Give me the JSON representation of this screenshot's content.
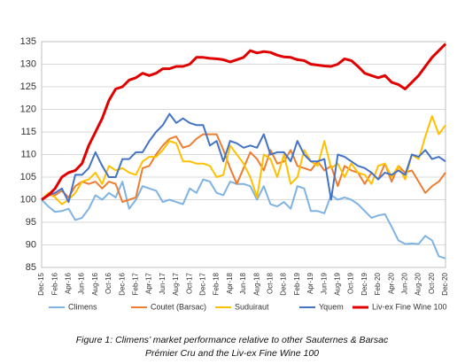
{
  "chart_data": {
    "type": "line",
    "caption": [
      "Figure 1: Climens’ market performance relative to other Sauternes & Barsac",
      "Prémier Cru and the Liv-ex Fine Wine 100"
    ],
    "categories": [
      "Dec-15",
      null,
      "Feb-16",
      null,
      "Apr-16",
      null,
      "Jun-16",
      null,
      "Aug-16",
      null,
      "Oct-16",
      null,
      "Dec-16",
      null,
      "Feb-17",
      null,
      "Apr-17",
      null,
      "Jun-17",
      null,
      "Aug-17",
      null,
      "Oct-17",
      null,
      "Dec-17",
      null,
      "Feb-18",
      null,
      "Apr-18",
      null,
      "Jun-18",
      null,
      "Aug-18",
      null,
      "Oct-18",
      null,
      "Dec-18",
      null,
      "Feb-19",
      null,
      "Apr-19",
      null,
      "Jun-19",
      null,
      "Aug-19",
      null,
      "Oct-19",
      null,
      "Dec-19",
      null,
      "Feb-20",
      null,
      "Apr-20",
      null,
      "Jun-20",
      null,
      "Aug-20",
      null,
      "Oct-20",
      null,
      "Dec-20"
    ],
    "ylim": [
      85,
      135
    ],
    "yticks": [
      85,
      90,
      95,
      100,
      105,
      110,
      115,
      120,
      125,
      130,
      135
    ],
    "grid": true,
    "legend": "bottom",
    "series": [
      {
        "name": "Climens",
        "color": "#7fb3e3",
        "width": 2,
        "values": [
          100,
          98.5,
          97.3,
          97.5,
          98,
          95.5,
          96,
          98,
          101,
          100,
          101.5,
          100.5,
          104,
          98,
          100,
          103,
          102.5,
          102,
          99.5,
          100,
          99.5,
          99,
          102.5,
          101.5,
          104.5,
          104,
          101.5,
          101,
          104,
          103.5,
          103.5,
          103,
          100,
          103,
          99,
          98.5,
          99.5,
          98,
          103,
          102.5,
          97.5,
          97.5,
          97,
          101,
          100,
          100.5,
          100,
          99,
          97.5,
          96,
          96.5,
          96.8,
          94,
          91,
          90.2,
          90.3,
          90.2,
          92,
          91,
          87.5,
          87
        ]
      },
      {
        "name": "Coutet (Barsac)",
        "color": "#ed7d31",
        "width": 2,
        "values": [
          100,
          101,
          101,
          102,
          100.5,
          103,
          104,
          103.5,
          104,
          102.5,
          104,
          103.5,
          99.5,
          100,
          100.5,
          107,
          107.5,
          110,
          112,
          113.5,
          114,
          111.5,
          112,
          113.5,
          114.5,
          114.5,
          114.5,
          111,
          107,
          103.5,
          107,
          110.5,
          109,
          106.5,
          111,
          108,
          108.5,
          111,
          107.5,
          107,
          106.5,
          108.5,
          106.5,
          107.5,
          103,
          107.5,
          106.5,
          106,
          103.5,
          106,
          104.5,
          108,
          104,
          107.5,
          106,
          106.5,
          104,
          101.5,
          103,
          104,
          106
        ]
      },
      {
        "name": "Suduiraut",
        "color": "#ffc000",
        "width": 2,
        "values": [
          100,
          101.5,
          100.5,
          99,
          100,
          101.5,
          104,
          104.5,
          106,
          103.5,
          107.5,
          106.5,
          107,
          106,
          105.5,
          108.5,
          109.5,
          109.5,
          111,
          113,
          112.5,
          108.5,
          108.5,
          108,
          108,
          107.5,
          105,
          105.5,
          112,
          110,
          108,
          105,
          100.5,
          110,
          109,
          105,
          110,
          103.5,
          105,
          111,
          108.5,
          107.5,
          113,
          107,
          108,
          105,
          108,
          106,
          105.5,
          103.5,
          107.5,
          108,
          105,
          107.5,
          104.5,
          110,
          109,
          114,
          118.5,
          114.5,
          116.5
        ]
      },
      {
        "name": "Yquem",
        "color": "#4472c4",
        "width": 2,
        "values": [
          100,
          101,
          101.5,
          102.5,
          99.5,
          105.5,
          105.5,
          107,
          110.5,
          107.5,
          105,
          105,
          109,
          109,
          110.5,
          110.5,
          113,
          115,
          116.5,
          119,
          117,
          118,
          117,
          116.5,
          116.5,
          112,
          113,
          108.5,
          113,
          112.5,
          111.5,
          112,
          111.5,
          114.5,
          110,
          110.5,
          110.5,
          108.5,
          113,
          110,
          108.5,
          108.5,
          109,
          100,
          110,
          109.5,
          108.5,
          107.5,
          107,
          106,
          104.5,
          106,
          105.5,
          106.5,
          105.5,
          110,
          109.5,
          111,
          109,
          109.5,
          108.5
        ]
      },
      {
        "name": "Liv-ex Fine Wine 100",
        "color": "#e00000",
        "width": 3,
        "values": [
          100,
          101,
          102.5,
          105,
          106,
          106.5,
          108,
          112,
          115,
          118,
          122,
          124.5,
          125,
          126.5,
          127,
          128,
          127.5,
          128,
          129,
          129,
          129.5,
          129.5,
          130,
          131.5,
          131.5,
          131.3,
          131.2,
          131,
          130.5,
          131,
          131.5,
          133,
          132.5,
          132.8,
          132.6,
          132,
          131.6,
          131.5,
          131,
          130.8,
          130,
          129.8,
          129.6,
          129.5,
          130,
          131.2,
          130.8,
          129.5,
          128,
          127.5,
          127,
          127.5,
          126,
          125.5,
          124.5,
          126,
          127.5,
          129.5,
          131.5,
          133,
          134.5
        ]
      }
    ]
  }
}
